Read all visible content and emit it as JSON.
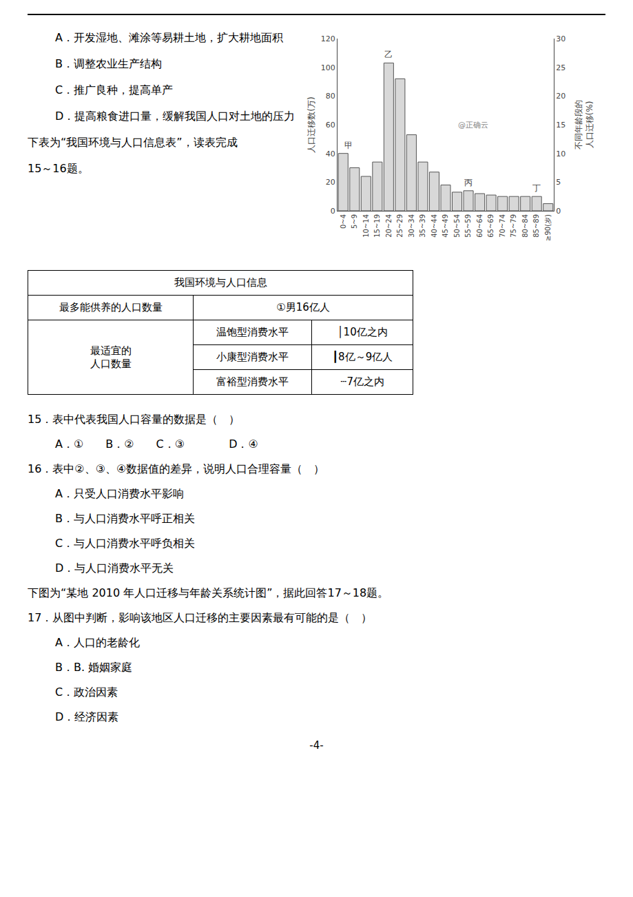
{
  "chart_data": {
    "type": "bar",
    "categories": [
      "0~4",
      "5~9",
      "10~14",
      "15~19",
      "20~24",
      "25~29",
      "30~34",
      "35~39",
      "40~44",
      "45~49",
      "50~54",
      "55~59",
      "60~64",
      "65~69",
      "70~74",
      "75~79",
      "80~84",
      "85~89",
      "≥90(岁)"
    ],
    "values": [
      40,
      30,
      24,
      34,
      103,
      92,
      53,
      34,
      27,
      18,
      13,
      14,
      12,
      11,
      10,
      10,
      10,
      10,
      5
    ],
    "color": "#d8d8d8",
    "ylabel": "人口迁移数(万)",
    "y2label": "不同年龄段的\n人口迁移(%)",
    "ylim": [
      0,
      120
    ],
    "yticks": [
      0,
      20,
      40,
      60,
      80,
      100,
      120
    ],
    "y2lim": [
      0,
      30
    ],
    "y2ticks": [
      0,
      5,
      10,
      15,
      20,
      25,
      30
    ],
    "grid": false,
    "annotations": [
      {
        "text": "甲",
        "x": "0~4"
      },
      {
        "text": "乙",
        "x": "20~24"
      },
      {
        "text": "丙",
        "x": "55~59"
      },
      {
        "text": "丁",
        "x": "85~89"
      }
    ],
    "watermark": "@正确云"
  },
  "texts_top": [
    "A．开发湿地、滩涂等易耕土地，扩大耕地面积",
    "B．调整农业生产结构",
    "C．推广良种，提高单产",
    "D．提高粮食进口量，缓解我国人口对土地的压力",
    "下表为“我国环境与人口信息表”，读表完成",
    "15～16题。"
  ],
  "table": {
    "title": "我国环境与人口信息",
    "header": [
      "最多能供养的人口数量",
      "①男16亿人"
    ],
    "merged": [
      "最适宜的",
      "人口数量"
    ],
    "rows": [
      [
        "温饱型消费水平",
        "│10亿之内"
      ],
      [
        "小康型消费水平",
        "┃8亿～9亿人"
      ],
      [
        "富裕型消费水平",
        "┄7亿之内"
      ]
    ]
  },
  "questions": [
    "15．表中代表我国人口容量的数据是（　）",
    "A．①　　B．②　　C．③　　　　D．④",
    "16．表中②、③、④数据值的差异，说明人口合理容量（　）",
    "A．只受人口消费水平影响",
    "B．与人口消费水平呼正相关",
    "C．与人口消费水平呼负相关",
    "D．与人口消费水平无关",
    "下图为“某地 2010 年人口迁移与年龄关系统计图”，据此回答17～18题。",
    "17．从图中判断，影响该地区人口迁移的主要因素最有可能的是（　）",
    "A．人口的老龄化",
    "B．B. 婚姻家庭",
    "C．政治因素",
    "D．经济因素"
  ],
  "page_num": "-4-"
}
